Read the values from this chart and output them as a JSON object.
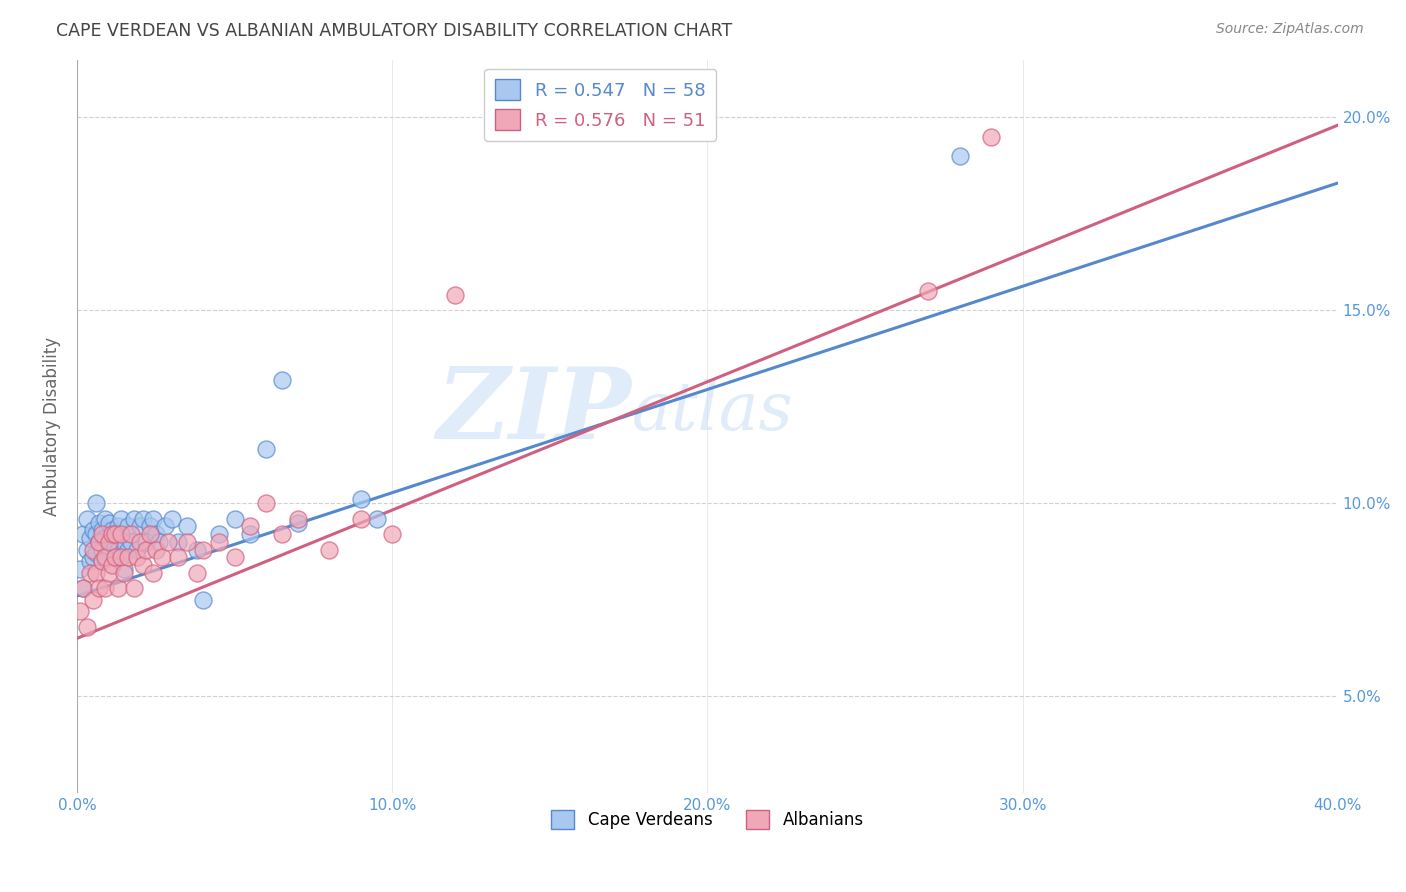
{
  "title": "CAPE VERDEAN VS ALBANIAN AMBULATORY DISABILITY CORRELATION CHART",
  "source": "Source: ZipAtlas.com",
  "ylabel": "Ambulatory Disability",
  "legend_entries": [
    {
      "label": "Cape Verdeans",
      "color": "#a8c8f0",
      "edge_color": "#5588cc",
      "R": "0.547",
      "N": "58"
    },
    {
      "label": "Albanians",
      "color": "#f0a8b8",
      "edge_color": "#d06080",
      "R": "0.576",
      "N": "51"
    }
  ],
  "watermark_zip": "ZIP",
  "watermark_atlas": "atlas",
  "cv_line_color": "#5588cc",
  "al_line_color": "#d06080",
  "cv_scatter_color": "#a8c8f0",
  "al_scatter_color": "#f0a8b8",
  "background_color": "#ffffff",
  "grid_color": "#cccccc",
  "title_color": "#444444",
  "axis_tick_color": "#5599dd",
  "xmin": 0.0,
  "xmax": 0.4,
  "ymin": 0.025,
  "ymax": 0.215,
  "xtick_vals": [
    0.0,
    0.1,
    0.2,
    0.3,
    0.4
  ],
  "xtick_labels": [
    "0.0%",
    "10.0%",
    "20.0%",
    "30.0%",
    "40.0%"
  ],
  "ytick_vals": [
    0.05,
    0.1,
    0.15,
    0.2
  ],
  "ytick_labels": [
    "5.0%",
    "10.0%",
    "15.0%",
    "20.0%"
  ],
  "cv_x": [
    0.001,
    0.002,
    0.002,
    0.003,
    0.003,
    0.004,
    0.004,
    0.005,
    0.005,
    0.006,
    0.006,
    0.006,
    0.007,
    0.007,
    0.008,
    0.008,
    0.008,
    0.009,
    0.009,
    0.01,
    0.01,
    0.011,
    0.011,
    0.012,
    0.012,
    0.013,
    0.013,
    0.014,
    0.014,
    0.015,
    0.015,
    0.016,
    0.016,
    0.017,
    0.018,
    0.019,
    0.02,
    0.021,
    0.022,
    0.023,
    0.024,
    0.025,
    0.026,
    0.028,
    0.03,
    0.032,
    0.035,
    0.038,
    0.04,
    0.045,
    0.05,
    0.055,
    0.06,
    0.065,
    0.07,
    0.09,
    0.095,
    0.28
  ],
  "cv_y": [
    0.083,
    0.078,
    0.092,
    0.088,
    0.096,
    0.085,
    0.091,
    0.086,
    0.093,
    0.087,
    0.092,
    0.1,
    0.09,
    0.095,
    0.088,
    0.093,
    0.085,
    0.091,
    0.096,
    0.088,
    0.095,
    0.09,
    0.093,
    0.086,
    0.092,
    0.094,
    0.088,
    0.091,
    0.096,
    0.09,
    0.083,
    0.088,
    0.094,
    0.09,
    0.096,
    0.088,
    0.094,
    0.096,
    0.09,
    0.094,
    0.096,
    0.092,
    0.09,
    0.094,
    0.096,
    0.09,
    0.094,
    0.088,
    0.075,
    0.092,
    0.096,
    0.092,
    0.114,
    0.132,
    0.095,
    0.101,
    0.096,
    0.19
  ],
  "al_x": [
    0.001,
    0.002,
    0.003,
    0.004,
    0.005,
    0.005,
    0.006,
    0.007,
    0.007,
    0.008,
    0.008,
    0.009,
    0.009,
    0.01,
    0.01,
    0.011,
    0.011,
    0.012,
    0.012,
    0.013,
    0.014,
    0.014,
    0.015,
    0.016,
    0.017,
    0.018,
    0.019,
    0.02,
    0.021,
    0.022,
    0.023,
    0.024,
    0.025,
    0.027,
    0.029,
    0.032,
    0.035,
    0.038,
    0.04,
    0.045,
    0.05,
    0.055,
    0.06,
    0.065,
    0.07,
    0.08,
    0.09,
    0.1,
    0.12,
    0.27,
    0.29
  ],
  "al_y": [
    0.072,
    0.078,
    0.068,
    0.082,
    0.075,
    0.088,
    0.082,
    0.078,
    0.09,
    0.085,
    0.092,
    0.078,
    0.086,
    0.082,
    0.09,
    0.084,
    0.092,
    0.086,
    0.092,
    0.078,
    0.086,
    0.092,
    0.082,
    0.086,
    0.092,
    0.078,
    0.086,
    0.09,
    0.084,
    0.088,
    0.092,
    0.082,
    0.088,
    0.086,
    0.09,
    0.086,
    0.09,
    0.082,
    0.088,
    0.09,
    0.086,
    0.094,
    0.1,
    0.092,
    0.096,
    0.088,
    0.096,
    0.092,
    0.154,
    0.155,
    0.195
  ],
  "cv_trend_x0": 0.0,
  "cv_trend_y0": 0.076,
  "cv_trend_x1": 0.4,
  "cv_trend_y1": 0.183,
  "al_trend_x0": 0.0,
  "al_trend_y0": 0.065,
  "al_trend_x1": 0.4,
  "al_trend_y1": 0.198
}
